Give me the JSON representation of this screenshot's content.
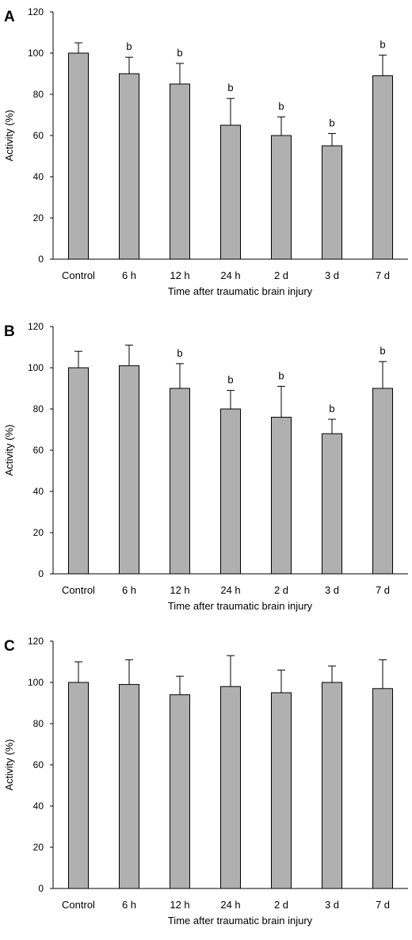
{
  "chart_data": [
    {
      "type": "bar",
      "panel_label": "A",
      "categories": [
        "Control",
        "6 h",
        "12 h",
        "24 h",
        "2 d",
        "3 d",
        "7 d"
      ],
      "values": [
        100,
        90,
        85,
        65,
        60,
        55,
        89
      ],
      "errors": [
        5,
        8,
        10,
        13,
        9,
        6,
        10
      ],
      "annotations": [
        "",
        "b",
        "b",
        "b",
        "b",
        "b",
        "b"
      ],
      "xlabel": "Time after traumatic brain injury",
      "ylabel": "Activity (%)",
      "ylim": [
        0,
        120
      ],
      "yticks": [
        0,
        20,
        40,
        60,
        80,
        100,
        120
      ],
      "bar_color": "#b0b0b0",
      "grid": false
    },
    {
      "type": "bar",
      "panel_label": "B",
      "categories": [
        "Control",
        "6 h",
        "12 h",
        "24 h",
        "2 d",
        "3 d",
        "7 d"
      ],
      "values": [
        100,
        101,
        90,
        80,
        76,
        68,
        90
      ],
      "errors": [
        8,
        10,
        12,
        9,
        15,
        7,
        13
      ],
      "annotations": [
        "",
        "",
        "b",
        "b",
        "b",
        "b",
        "b"
      ],
      "xlabel": "Time after traumatic brain injury",
      "ylabel": "Activity (%)",
      "ylim": [
        0,
        120
      ],
      "yticks": [
        0,
        20,
        40,
        60,
        80,
        100,
        120
      ],
      "bar_color": "#b0b0b0",
      "grid": false
    },
    {
      "type": "bar",
      "panel_label": "C",
      "categories": [
        "Control",
        "6 h",
        "12 h",
        "24 h",
        "2 d",
        "3 d",
        "7 d"
      ],
      "values": [
        100,
        99,
        94,
        98,
        95,
        100,
        97
      ],
      "errors": [
        10,
        12,
        9,
        15,
        11,
        8,
        14
      ],
      "annotations": [
        "",
        "",
        "",
        "",
        "",
        "",
        ""
      ],
      "xlabel": "Time after traumatic brain injury",
      "ylabel": "Activity (%)",
      "ylim": [
        0,
        120
      ],
      "yticks": [
        0,
        20,
        40,
        60,
        80,
        100,
        120
      ],
      "bar_color": "#b0b0b0",
      "grid": false
    }
  ]
}
